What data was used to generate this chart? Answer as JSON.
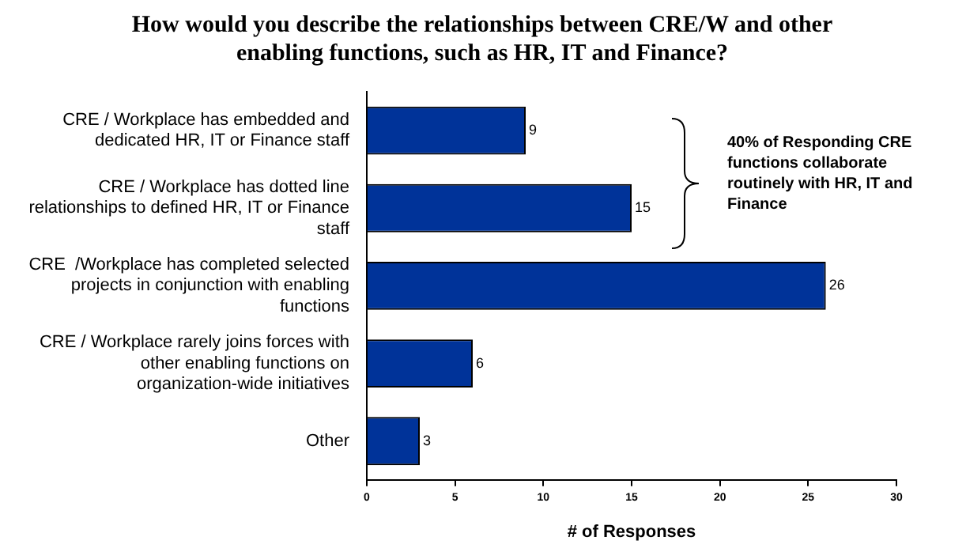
{
  "chart_data": {
    "type": "bar",
    "orientation": "horizontal",
    "title": "How would you describe the relationships between CRE/W and other enabling functions, such as HR, IT and Finance?",
    "categories": [
      "CRE / Workplace has embedded and dedicated HR, IT or Finance staff",
      "CRE / Workplace has dotted line relationships to defined HR, IT or Finance staff",
      "CRE  /Workplace has completed selected projects in conjunction with enabling functions",
      "CRE / Workplace rarely joins forces with other enabling functions on organization-wide initiatives",
      "Other"
    ],
    "values": [
      9,
      15,
      26,
      6,
      3
    ],
    "color": "#003399",
    "xlabel": "# of Responses",
    "xlim": [
      0,
      30
    ],
    "xticks": [
      0,
      5,
      10,
      15,
      20,
      25,
      30
    ],
    "data_labels": true,
    "grid": false,
    "legend": false,
    "annotations": [
      "40% of Responding CRE functions collaborate routinely with HR, IT and Finance"
    ]
  }
}
